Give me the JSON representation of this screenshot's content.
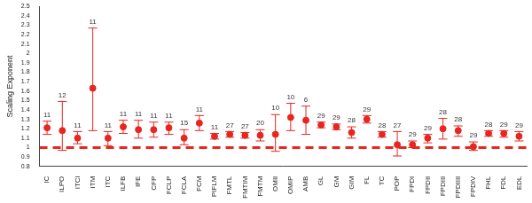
{
  "chart_data": {
    "type": "scatter",
    "y_label": "Scaling Exponent",
    "categories": [
      "IC",
      "ILPO",
      "ITCl",
      "ITM",
      "ITC",
      "ILFB",
      "IFE",
      "CFP",
      "FCLP",
      "FCLA",
      "FCM",
      "PIFLM",
      "FMTL",
      "FMTIM",
      "FMTM",
      "OMII",
      "OMIP",
      "AMB",
      "GL",
      "GM",
      "GIM",
      "FL",
      "TC",
      "POP",
      "FPDI",
      "FPDII",
      "FPDIII",
      "FPDIIII",
      "FPDIV",
      "FHL",
      "FDL",
      "EDL"
    ],
    "values": [
      1.21,
      1.18,
      1.1,
      1.63,
      1.1,
      1.22,
      1.19,
      1.19,
      1.21,
      1.1,
      1.26,
      1.12,
      1.14,
      1.13,
      1.13,
      1.14,
      1.32,
      1.29,
      1.24,
      1.22,
      1.16,
      1.3,
      1.14,
      1.03,
      1.03,
      1.1,
      1.2,
      1.18,
      1.01,
      1.15,
      1.15,
      1.12
    ],
    "error_low": [
      1.14,
      0.97,
      1.04,
      1.18,
      1.02,
      1.15,
      1.1,
      1.11,
      1.14,
      1.03,
      1.18,
      1.09,
      1.11,
      1.1,
      1.07,
      0.96,
      1.18,
      1.14,
      1.21,
      1.19,
      1.1,
      1.26,
      1.11,
      0.91,
      1.0,
      1.05,
      1.09,
      1.12,
      0.97,
      1.12,
      1.11,
      1.07
    ],
    "error_high": [
      1.28,
      1.49,
      1.17,
      2.27,
      1.17,
      1.29,
      1.29,
      1.27,
      1.27,
      1.19,
      1.34,
      1.15,
      1.17,
      1.16,
      1.19,
      1.35,
      1.47,
      1.44,
      1.27,
      1.25,
      1.22,
      1.34,
      1.17,
      1.17,
      1.07,
      1.14,
      1.31,
      1.23,
      1.06,
      1.18,
      1.18,
      1.17
    ],
    "sample_sizes": [
      11,
      12,
      11,
      11,
      11,
      11,
      11,
      11,
      11,
      15,
      11,
      11,
      27,
      27,
      20,
      10,
      10,
      6,
      29,
      29,
      28,
      29,
      28,
      27,
      29,
      29,
      28,
      28,
      29,
      28,
      29,
      29
    ],
    "color": "#e8261f",
    "marker": "circle",
    "reference_line": {
      "value": 1,
      "line_style": "dashed"
    },
    "ylim": [
      0.8,
      2.5
    ],
    "yticks": [
      0.8,
      0.9,
      1,
      1.1,
      1.2,
      1.3,
      1.4,
      1.5,
      1.6,
      1.7,
      1.8,
      1.9,
      2,
      2.1,
      2.2,
      2.3,
      2.4,
      2.5
    ],
    "grid": false
  }
}
